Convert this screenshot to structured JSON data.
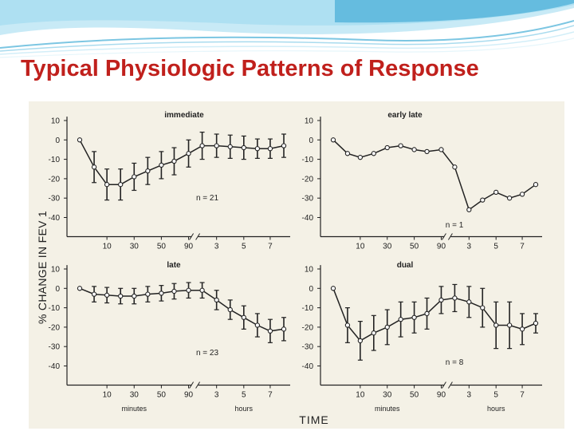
{
  "slide": {
    "title": "Typical Physiologic Patterns of Response"
  },
  "figure": {
    "ylabel": "% CHANGE IN FEV 1",
    "xlabel": "TIME",
    "unit_left": "minutes",
    "unit_right": "hours"
  },
  "chart_data": [
    {
      "type": "line",
      "title": "immediate",
      "n_label": "n = 21",
      "ylabel": "% CHANGE IN FEV 1",
      "ylim": [
        -50,
        10
      ],
      "yticks": [
        10,
        0,
        -10,
        -20,
        -30,
        -40
      ],
      "xticks": [
        "10",
        "30",
        "50",
        "90",
        "3",
        "5",
        "7"
      ],
      "xunits": [
        "minutes",
        "hours"
      ],
      "x": [
        "0 min",
        "5 min",
        "10 min",
        "20 min",
        "30 min",
        "40 min",
        "50 min",
        "60 min",
        "90 min",
        "2 h",
        "3 h",
        "4 h",
        "5 h",
        "6 h",
        "7 h",
        "8 h"
      ],
      "values": [
        0,
        -14,
        -23,
        -23,
        -19,
        -16,
        -13,
        -11,
        -7,
        -3,
        -3,
        -3.5,
        -4,
        -4.5,
        -4.5,
        -3
      ],
      "error": [
        0,
        8,
        8,
        8,
        7,
        7,
        7,
        7,
        7,
        7,
        6,
        6,
        6,
        5,
        5,
        6
      ]
    },
    {
      "type": "line",
      "title": "early late",
      "n_label": "n = 1",
      "ylabel": "% CHANGE IN FEV 1",
      "ylim": [
        -50,
        10
      ],
      "yticks": [
        10,
        0,
        -10,
        -20,
        -30,
        -40
      ],
      "xticks": [
        "10",
        "30",
        "50",
        "90",
        "3",
        "5",
        "7"
      ],
      "xunits": [
        "minutes",
        "hours"
      ],
      "x": [
        "0 min",
        "5 min",
        "10 min",
        "20 min",
        "30 min",
        "40 min",
        "50 min",
        "60 min",
        "90 min",
        "2 h",
        "3 h",
        "4 h",
        "5 h",
        "6 h",
        "7 h",
        "8 h"
      ],
      "values": [
        0,
        -7,
        -9,
        -7,
        -4,
        -3,
        -5,
        -6,
        -5,
        -14,
        -36,
        -31,
        -27,
        -30,
        -28,
        -23
      ],
      "error": []
    },
    {
      "type": "line",
      "title": "late",
      "n_label": "n = 23",
      "ylabel": "% CHANGE IN FEV 1",
      "ylim": [
        -50,
        10
      ],
      "yticks": [
        10,
        0,
        -10,
        -20,
        -30,
        -40
      ],
      "xticks": [
        "10",
        "30",
        "50",
        "90",
        "3",
        "5",
        "7"
      ],
      "xunits": [
        "minutes",
        "hours"
      ],
      "x": [
        "0 min",
        "5 min",
        "10 min",
        "20 min",
        "30 min",
        "40 min",
        "50 min",
        "60 min",
        "90 min",
        "2 h",
        "3 h",
        "4 h",
        "5 h",
        "6 h",
        "7 h",
        "8 h"
      ],
      "values": [
        0,
        -3,
        -3.5,
        -4,
        -4,
        -3,
        -2.5,
        -1.5,
        -1,
        -1,
        -6,
        -11,
        -15,
        -19,
        -22,
        -21
      ],
      "error": [
        0,
        4,
        4,
        4,
        4,
        4,
        4,
        4,
        4,
        4,
        5,
        5,
        6,
        6,
        6,
        6
      ]
    },
    {
      "type": "line",
      "title": "dual",
      "n_label": "n = 8",
      "ylabel": "% CHANGE IN FEV 1",
      "ylim": [
        -50,
        10
      ],
      "yticks": [
        10,
        0,
        -10,
        -20,
        -30,
        -40
      ],
      "xticks": [
        "10",
        "30",
        "50",
        "90",
        "3",
        "5",
        "7"
      ],
      "xunits": [
        "minutes",
        "hours"
      ],
      "x": [
        "0 min",
        "5 min",
        "10 min",
        "20 min",
        "30 min",
        "40 min",
        "50 min",
        "60 min",
        "90 min",
        "2 h",
        "3 h",
        "4 h",
        "5 h",
        "6 h",
        "7 h",
        "8 h"
      ],
      "values": [
        0,
        -19,
        -27,
        -23,
        -20,
        -16,
        -15,
        -13,
        -6,
        -5,
        -7,
        -10,
        -19,
        -19,
        -21,
        -18
      ],
      "error": [
        0,
        9,
        10,
        9,
        9,
        9,
        8,
        8,
        7,
        7,
        8,
        10,
        12,
        12,
        8,
        5
      ]
    }
  ]
}
